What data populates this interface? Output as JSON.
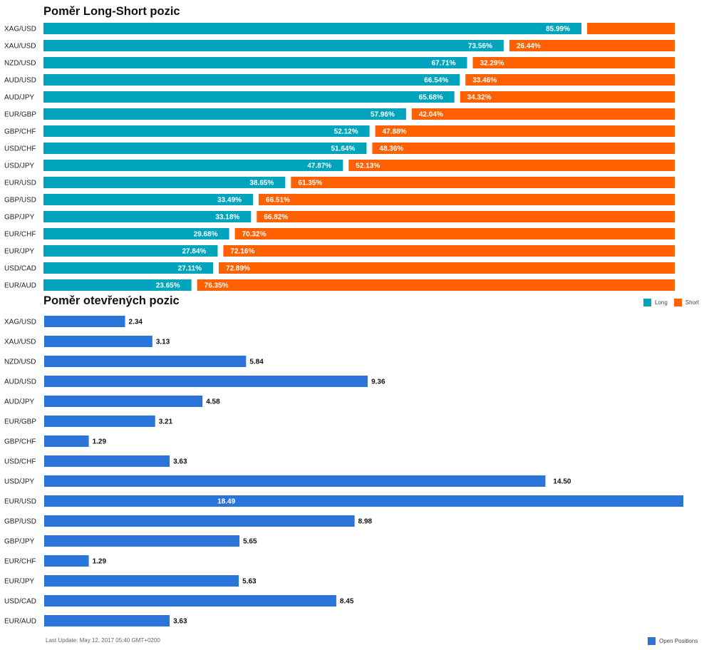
{
  "colors": {
    "long": "#00a5bd",
    "short": "#ff6100",
    "open": "#2b74d9"
  },
  "footer": "Last Update: May 12, 2017 05:40 GMT+0200",
  "chart_data": [
    {
      "type": "bar",
      "orientation": "horizontal",
      "stacked": true,
      "title": "Poměr Long-Short pozic",
      "categories": [
        "XAG/USD",
        "XAU/USD",
        "NZD/USD",
        "AUD/USD",
        "AUD/JPY",
        "EUR/GBP",
        "GBP/CHF",
        "USD/CHF",
        "USD/JPY",
        "EUR/USD",
        "GBP/USD",
        "GBP/JPY",
        "EUR/CHF",
        "EUR/JPY",
        "USD/CAD",
        "EUR/AUD"
      ],
      "series": [
        {
          "name": "Long",
          "values": [
            85.99,
            73.56,
            67.71,
            66.54,
            65.68,
            57.96,
            52.12,
            51.64,
            47.87,
            38.65,
            33.49,
            33.18,
            29.68,
            27.84,
            27.11,
            23.65
          ]
        },
        {
          "name": "Short",
          "values": [
            14.01,
            26.44,
            32.29,
            33.46,
            34.32,
            42.04,
            47.88,
            48.36,
            52.13,
            61.35,
            66.51,
            66.82,
            70.32,
            72.16,
            72.89,
            76.35
          ]
        }
      ],
      "labels": {
        "Long": [
          "85.99%",
          "73.56%",
          "67.71%",
          "66.54%",
          "65.68%",
          "57.96%",
          "52.12%",
          "51.64%",
          "47.87%",
          "38.65%",
          "33.49%",
          "33.18%",
          "29.68%",
          "27.84%",
          "27.11%",
          "23.65%"
        ],
        "Short": [
          "",
          "26.44%",
          "32.29%",
          "33.46%",
          "34.32%",
          "42.04%",
          "47.88%",
          "48.36%",
          "52.13%",
          "61.35%",
          "66.51%",
          "66.82%",
          "70.32%",
          "72.16%",
          "72.89%",
          "76.35%"
        ]
      },
      "legend": [
        "Long",
        "Short"
      ],
      "legend_position": "bottom-right",
      "ylim": [
        0,
        100
      ]
    },
    {
      "type": "bar",
      "orientation": "horizontal",
      "title": "Poměr otevřených pozic",
      "categories": [
        "XAG/USD",
        "XAU/USD",
        "NZD/USD",
        "AUD/USD",
        "AUD/JPY",
        "EUR/GBP",
        "GBP/CHF",
        "USD/CHF",
        "USD/JPY",
        "EUR/USD",
        "GBP/USD",
        "GBP/JPY",
        "EUR/CHF",
        "EUR/JPY",
        "USD/CAD",
        "EUR/AUD"
      ],
      "series": [
        {
          "name": "Open Positions",
          "values": [
            2.34,
            3.13,
            5.84,
            9.36,
            4.58,
            3.21,
            1.29,
            3.63,
            14.5,
            18.49,
            8.98,
            5.65,
            1.29,
            5.63,
            8.45,
            3.63
          ]
        }
      ],
      "labels": [
        "2.34",
        "3.13",
        "5.84",
        "9.36",
        "4.58",
        "3.21",
        "1.29",
        "3.63",
        "14.50",
        "18.49",
        "8.98",
        "5.65",
        "1.29",
        "5.63",
        "8.45",
        "3.63"
      ],
      "legend": [
        "Open Positions"
      ],
      "legend_position": "bottom-right",
      "ylim": [
        0,
        18.49
      ]
    }
  ]
}
